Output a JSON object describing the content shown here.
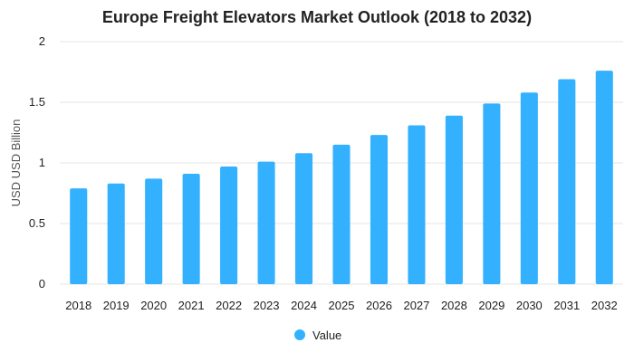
{
  "chart_data": {
    "type": "bar",
    "title": "Europe Freight Elevators Market Outlook (2018 to 2032)",
    "xlabel": "",
    "ylabel": "USD USD Billion",
    "ylim": [
      0,
      2
    ],
    "yticks": [
      "0",
      "0.5",
      "1",
      "1.5",
      "2"
    ],
    "grid": true,
    "categories": [
      "2018",
      "2019",
      "2020",
      "2021",
      "2022",
      "2023",
      "2024",
      "2025",
      "2026",
      "2027",
      "2028",
      "2029",
      "2030",
      "2031",
      "2032"
    ],
    "series": [
      {
        "name": "Value",
        "color": "#33b1ff",
        "values": [
          0.79,
          0.83,
          0.87,
          0.91,
          0.97,
          1.01,
          1.08,
          1.15,
          1.23,
          1.31,
          1.39,
          1.49,
          1.58,
          1.69,
          1.76
        ]
      }
    ],
    "legend_position": "bottom"
  }
}
